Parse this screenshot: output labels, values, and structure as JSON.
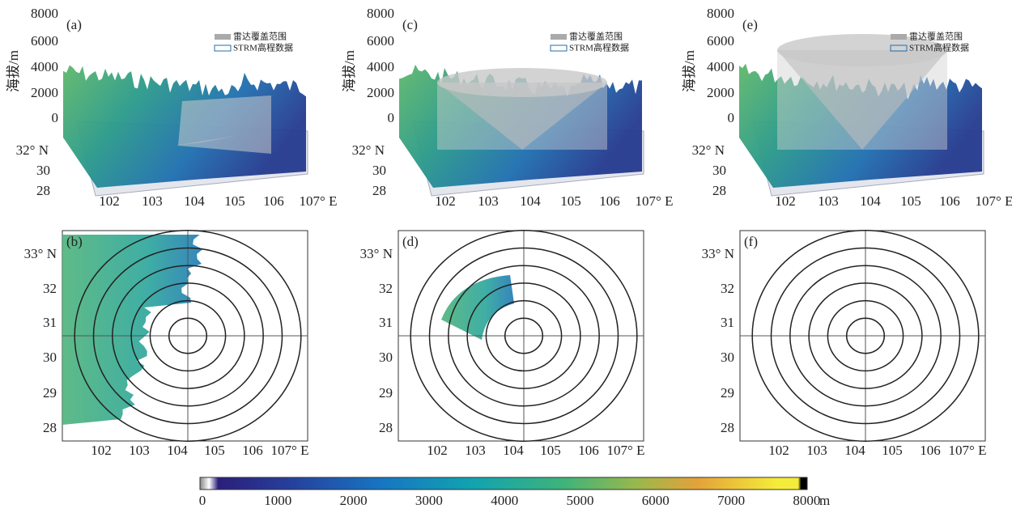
{
  "top_panels": [
    {
      "label": "(a)",
      "y_axis_title": "海拔/m",
      "z_ticks": [
        "8000",
        "6000",
        "4000",
        "2000",
        "0"
      ],
      "lat_ticks": [
        "32° N",
        "30",
        "28"
      ],
      "lon_ticks": [
        "102",
        "103",
        "104",
        "105",
        "106",
        "107° E"
      ],
      "legend": [
        "雷达覆盖范围",
        "STRM高程数据"
      ]
    },
    {
      "label": "(c)",
      "y_axis_title": "海拔/m",
      "z_ticks": [
        "8000",
        "6000",
        "4000",
        "2000",
        "0"
      ],
      "lat_ticks": [
        "32° N",
        "30",
        "28"
      ],
      "lon_ticks": [
        "102",
        "103",
        "104",
        "105",
        "106",
        "107° E"
      ],
      "legend": [
        "雷达覆盖范围",
        "STRM高程数据"
      ]
    },
    {
      "label": "(e)",
      "y_axis_title": "海拔/m",
      "z_ticks": [
        "8000",
        "6000",
        "4000",
        "2000",
        "0"
      ],
      "lat_ticks": [
        "32° N",
        "30",
        "28"
      ],
      "lon_ticks": [
        "102",
        "103",
        "104",
        "105",
        "106",
        "107° E"
      ],
      "legend": [
        "雷达覆盖范围",
        "STRM高程数据"
      ]
    }
  ],
  "map_panels": [
    {
      "label": "(b)",
      "lat_ticks": [
        "33° N",
        "32",
        "31",
        "30",
        "29",
        "28"
      ],
      "lon_ticks": [
        "102",
        "103",
        "104",
        "105",
        "106",
        "107° E"
      ]
    },
    {
      "label": "(d)",
      "lat_ticks": [
        "33° N",
        "32",
        "31",
        "30",
        "29",
        "28"
      ],
      "lon_ticks": [
        "102",
        "103",
        "104",
        "105",
        "106",
        "107° E"
      ]
    },
    {
      "label": "(f)",
      "lat_ticks": [
        "33° N",
        "32",
        "31",
        "30",
        "29",
        "28"
      ],
      "lon_ticks": [
        "102",
        "103",
        "104",
        "105",
        "106",
        "107° E"
      ]
    }
  ],
  "colorbar": {
    "ticks": [
      "0",
      "1000",
      "2000",
      "3000",
      "4000",
      "5000",
      "6000",
      "7000",
      "8000"
    ],
    "unit": "m"
  }
}
